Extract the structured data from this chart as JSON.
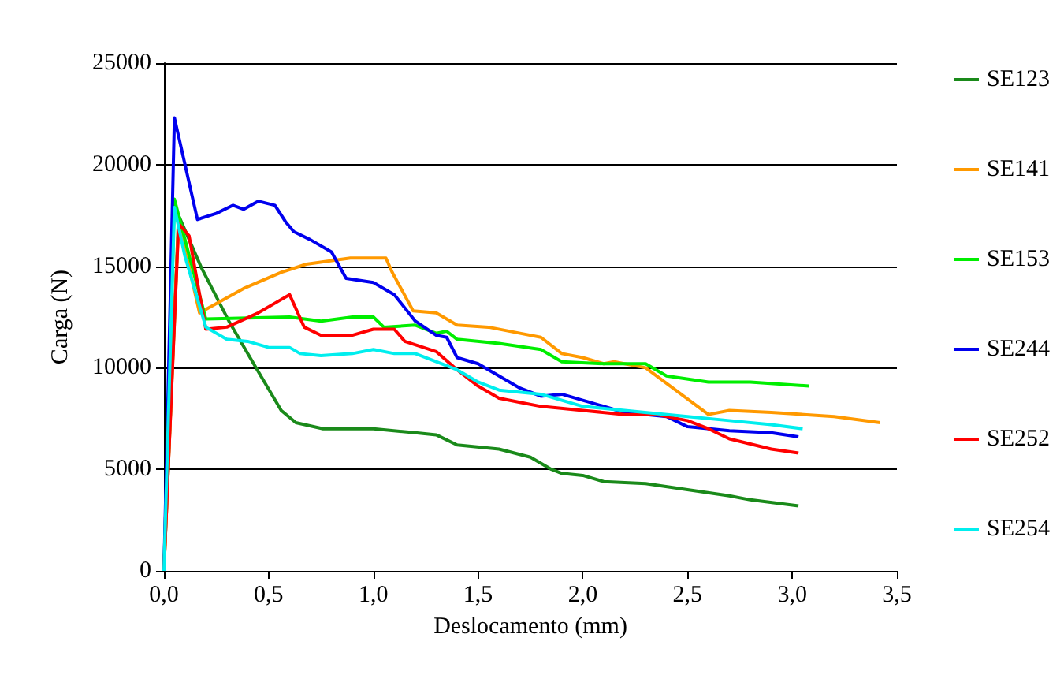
{
  "chart_data": {
    "type": "line",
    "xlabel": "Deslocamento (mm)",
    "ylabel": "Carga (N)",
    "xlim": [
      0,
      3.5
    ],
    "xticks": [
      {
        "value": 0,
        "label": "0,0"
      },
      {
        "value": 0.5,
        "label": "0,5"
      },
      {
        "value": 1,
        "label": "1,0"
      },
      {
        "value": 1.5,
        "label": "1,5"
      },
      {
        "value": 2,
        "label": "2,0"
      },
      {
        "value": 2.5,
        "label": "2,5"
      },
      {
        "value": 3,
        "label": "3,0"
      },
      {
        "value": 3.5,
        "label": "3,5"
      }
    ],
    "ylim": [
      0,
      25000
    ],
    "yticks": [
      0,
      5000,
      10000,
      15000,
      20000,
      25000
    ],
    "grid": "y",
    "legend": "right",
    "marker": "none",
    "line_style": "solid",
    "series": [
      {
        "name": "SE123",
        "color": "#1a8a1a",
        "x": [
          0,
          0.07,
          0.18,
          0.31,
          0.44,
          0.56,
          0.63,
          0.76,
          1.0,
          1.2,
          1.3,
          1.4,
          1.6,
          1.75,
          1.85,
          1.9,
          2.0,
          2.1,
          2.3,
          2.5,
          2.7,
          2.8,
          3.03
        ],
        "values": [
          0,
          17500,
          14900,
          12300,
          10000,
          7900,
          7300,
          7000,
          7000,
          6800,
          6700,
          6200,
          6000,
          5600,
          5000,
          4800,
          4700,
          4400,
          4300,
          4000,
          3700,
          3500,
          3200
        ]
      },
      {
        "name": "SE141",
        "color": "#ff9900",
        "x": [
          0,
          0.07,
          0.17,
          0.38,
          0.56,
          0.68,
          0.89,
          1.06,
          1.09,
          1.19,
          1.3,
          1.4,
          1.55,
          1.7,
          1.8,
          1.9,
          2.0,
          2.1,
          2.15,
          2.3,
          2.6,
          2.7,
          2.9,
          3.2,
          3.42
        ],
        "values": [
          0,
          17200,
          12700,
          13900,
          14700,
          15100,
          15400,
          15400,
          14700,
          12800,
          12700,
          12100,
          12000,
          11700,
          11500,
          10700,
          10500,
          10200,
          10300,
          10000,
          7700,
          7900,
          7800,
          7600,
          7300
        ]
      },
      {
        "name": "SE153",
        "color": "#00ee00",
        "x": [
          0,
          0.05,
          0.2,
          0.6,
          0.75,
          0.9,
          1.0,
          1.05,
          1.2,
          1.3,
          1.35,
          1.4,
          1.6,
          1.8,
          1.9,
          2.1,
          2.3,
          2.4,
          2.6,
          2.8,
          3.08
        ],
        "values": [
          0,
          18300,
          12400,
          12500,
          12300,
          12500,
          12500,
          12000,
          12100,
          11700,
          11800,
          11400,
          11200,
          10900,
          10300,
          10200,
          10200,
          9600,
          9300,
          9300,
          9100
        ]
      },
      {
        "name": "SE244",
        "color": "#0000ee",
        "x": [
          0,
          0.05,
          0.16,
          0.25,
          0.33,
          0.38,
          0.45,
          0.53,
          0.58,
          0.62,
          0.7,
          0.8,
          0.87,
          1.0,
          1.1,
          1.2,
          1.3,
          1.35,
          1.4,
          1.5,
          1.7,
          1.8,
          1.9,
          2.0,
          2.2,
          2.4,
          2.5,
          2.7,
          2.9,
          3.03
        ],
        "values": [
          0,
          22300,
          17300,
          17600,
          18000,
          17800,
          18200,
          18000,
          17200,
          16700,
          16300,
          15700,
          14400,
          14200,
          13600,
          12300,
          11600,
          11500,
          10500,
          10200,
          9000,
          8600,
          8700,
          8400,
          7800,
          7600,
          7100,
          6900,
          6800,
          6600
        ]
      },
      {
        "name": "SE252",
        "color": "#ff0000",
        "x": [
          0,
          0.07,
          0.12,
          0.2,
          0.3,
          0.45,
          0.55,
          0.6,
          0.67,
          0.75,
          0.9,
          1.0,
          1.1,
          1.15,
          1.3,
          1.4,
          1.5,
          1.6,
          1.7,
          1.8,
          2.0,
          2.2,
          2.35,
          2.5,
          2.6,
          2.7,
          2.9,
          3.03
        ],
        "values": [
          0,
          17100,
          16500,
          11900,
          12000,
          12700,
          13300,
          13600,
          12000,
          11600,
          11600,
          11900,
          11900,
          11300,
          10800,
          9900,
          9100,
          8500,
          8300,
          8100,
          7900,
          7700,
          7700,
          7400,
          7000,
          6500,
          6000,
          5800
        ]
      },
      {
        "name": "SE254",
        "color": "#00eeee",
        "x": [
          0,
          0.05,
          0.1,
          0.2,
          0.3,
          0.4,
          0.5,
          0.6,
          0.65,
          0.75,
          0.9,
          1.0,
          1.1,
          1.2,
          1.3,
          1.4,
          1.5,
          1.6,
          1.8,
          2.0,
          2.2,
          2.5,
          2.7,
          2.9,
          3.05
        ],
        "values": [
          0,
          17900,
          15500,
          12000,
          11400,
          11300,
          11000,
          11000,
          10700,
          10600,
          10700,
          10900,
          10700,
          10700,
          10300,
          9900,
          9300,
          8900,
          8700,
          8100,
          7900,
          7600,
          7400,
          7200,
          7000
        ]
      }
    ]
  }
}
